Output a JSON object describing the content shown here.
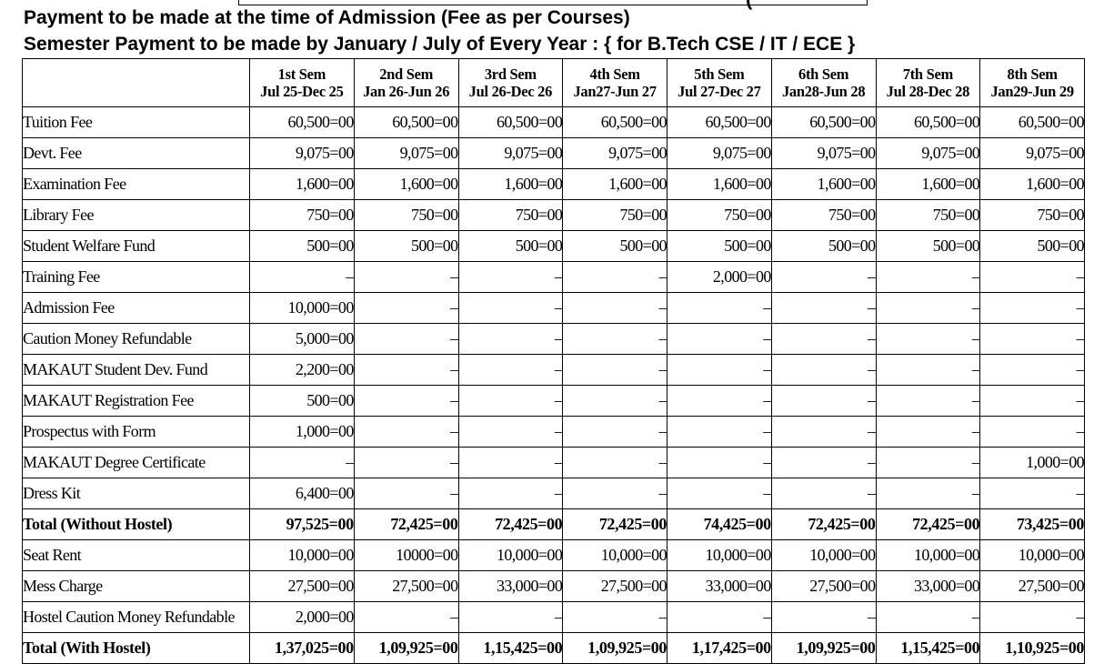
{
  "heading_line1": "Payment to be made at the time of Admission (Fee as per Courses)",
  "heading_line2": "Semester Payment to be made by January / July of Every Year : { for B.Tech CSE / IT / ECE }",
  "top_box_fragment": "(",
  "semesters": [
    {
      "name": "1st Sem",
      "range": "Jul 25-Dec 25"
    },
    {
      "name": "2nd Sem",
      "range": "Jan 26-Jun 26"
    },
    {
      "name": "3rd Sem",
      "range": "Jul 26-Dec 26"
    },
    {
      "name": "4th Sem",
      "range": "Jan27-Jun 27"
    },
    {
      "name": "5th Sem",
      "range": "Jul 27-Dec 27"
    },
    {
      "name": "6th Sem",
      "range": "Jan28-Jun 28"
    },
    {
      "name": "7th Sem",
      "range": "Jul 28-Dec 28"
    },
    {
      "name": "8th Sem",
      "range": "Jan29-Jun 29"
    }
  ],
  "rows": [
    {
      "label": "Tuition Fee",
      "values": [
        "60,500=00",
        "60,500=00",
        "60,500=00",
        "60,500=00",
        "60,500=00",
        "60,500=00",
        "60,500=00",
        "60,500=00"
      ]
    },
    {
      "label": "Devt. Fee",
      "values": [
        "9,075=00",
        "9,075=00",
        "9,075=00",
        "9,075=00",
        "9,075=00",
        "9,075=00",
        "9,075=00",
        "9,075=00"
      ]
    },
    {
      "label": "Examination Fee",
      "values": [
        "1,600=00",
        "1,600=00",
        "1,600=00",
        "1,600=00",
        "1,600=00",
        "1,600=00",
        "1,600=00",
        "1,600=00"
      ]
    },
    {
      "label": "Library Fee",
      "values": [
        "750=00",
        "750=00",
        "750=00",
        "750=00",
        "750=00",
        "750=00",
        "750=00",
        "750=00"
      ]
    },
    {
      "label": "Student Welfare Fund",
      "values": [
        "500=00",
        "500=00",
        "500=00",
        "500=00",
        "500=00",
        "500=00",
        "500=00",
        "500=00"
      ]
    },
    {
      "label": "Training Fee",
      "values": [
        "–",
        "–",
        "–",
        "–",
        "2,000=00",
        "–",
        "–",
        "–"
      ]
    },
    {
      "label": "Admission Fee",
      "values": [
        "10,000=00",
        "–",
        "–",
        "–",
        "–",
        "–",
        "–",
        "–"
      ]
    },
    {
      "label": "Caution Money Refundable",
      "values": [
        "5,000=00",
        "–",
        "–",
        "–",
        "–",
        "–",
        "–",
        "–"
      ]
    },
    {
      "label": "MAKAUT Student Dev. Fund",
      "values": [
        "2,200=00",
        "–",
        "–",
        "–",
        "–",
        "–",
        "–",
        "–"
      ]
    },
    {
      "label": "MAKAUT Registration Fee",
      "values": [
        "500=00",
        "–",
        "–",
        "–",
        "–",
        "–",
        "–",
        "–"
      ]
    },
    {
      "label": "Prospectus with Form",
      "values": [
        "1,000=00",
        "–",
        "–",
        "–",
        "–",
        "–",
        "–",
        "–"
      ]
    },
    {
      "label": "MAKAUT Degree Certificate",
      "values": [
        "–",
        "–",
        "–",
        "–",
        "–",
        "–",
        "–",
        "1,000=00"
      ]
    },
    {
      "label": "Dress Kit",
      "values": [
        "6,400=00",
        "–",
        "–",
        "–",
        "–",
        "–",
        "–",
        "–"
      ]
    },
    {
      "label": "Total (Without Hostel)",
      "total": true,
      "values": [
        "97,525=00",
        "72,425=00",
        "72,425=00",
        "72,425=00",
        "74,425=00",
        "72,425=00",
        "72,425=00",
        "73,425=00"
      ]
    },
    {
      "label": "Seat Rent",
      "values": [
        "10,000=00",
        "10000=00",
        "10,000=00",
        "10,000=00",
        "10,000=00",
        "10,000=00",
        "10,000=00",
        "10,000=00"
      ]
    },
    {
      "label": "Mess Charge",
      "values": [
        "27,500=00",
        "27,500=00",
        "33,000=00",
        "27,500=00",
        "33,000=00",
        "27,500=00",
        "33,000=00",
        "27,500=00"
      ]
    },
    {
      "label": "Hostel Caution Money Refundable",
      "small": true,
      "values": [
        "2,000=00",
        "–",
        "–",
        "–",
        "–",
        "–",
        "–",
        "–"
      ]
    },
    {
      "label": "Total (With Hostel)",
      "total": true,
      "values": [
        "1,37,025=00",
        "1,09,925=00",
        "1,15,425=00",
        "1,09,925=00",
        "1,17,425=00",
        "1,09,925=00",
        "1,15,425=00",
        "1,10,925=00"
      ]
    }
  ]
}
